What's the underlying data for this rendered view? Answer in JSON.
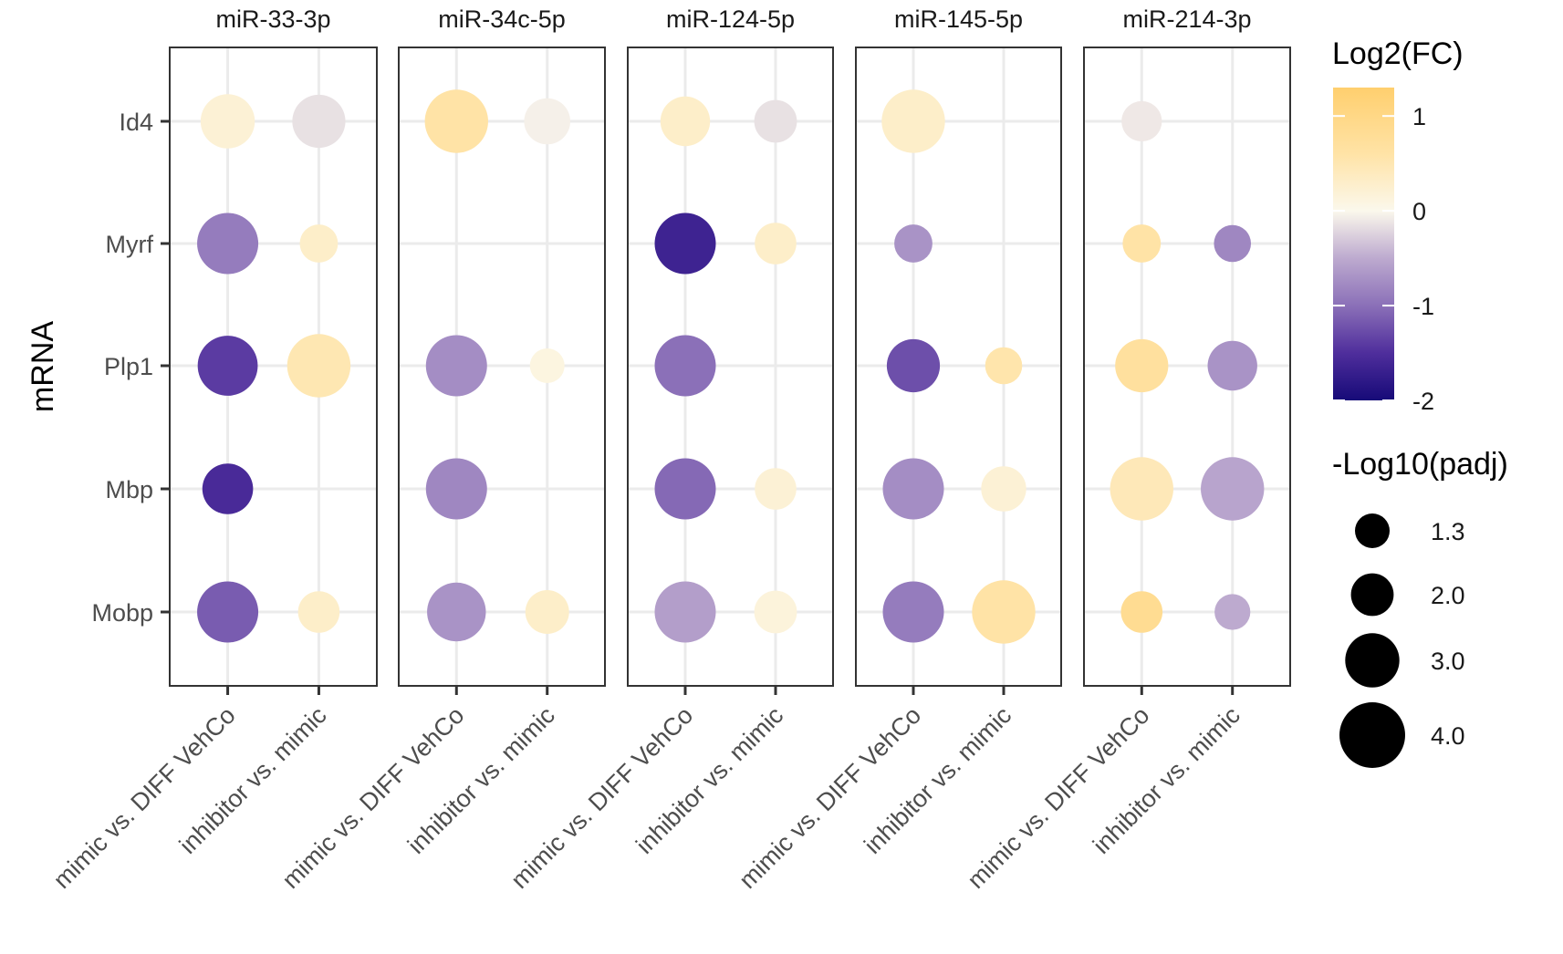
{
  "chart_data": {
    "type": "scatter",
    "subtype": "faceted-dot-plot",
    "ylabel": "mRNA",
    "facets": [
      "miR-33-3p",
      "miR-34c-5p",
      "miR-124-5p",
      "miR-145-5p",
      "miR-214-3p"
    ],
    "x_categories": [
      "mimic vs. DIFF VehCo",
      "inhibitor vs. mimic"
    ],
    "y_categories": [
      "Id4",
      "Myrf",
      "Plp1",
      "Mbp",
      "Mobp"
    ],
    "points": [
      {
        "facet": "miR-33-3p",
        "x": "mimic vs. DIFF VehCo",
        "y": "Id4",
        "log2fc": 0.2,
        "neglog10padj": 3.0
      },
      {
        "facet": "miR-33-3p",
        "x": "inhibitor vs. mimic",
        "y": "Id4",
        "log2fc": -0.15,
        "neglog10padj": 2.9
      },
      {
        "facet": "miR-33-3p",
        "x": "mimic vs. DIFF VehCo",
        "y": "Myrf",
        "log2fc": -0.9,
        "neglog10padj": 3.6
      },
      {
        "facet": "miR-33-3p",
        "x": "inhibitor vs. mimic",
        "y": "Myrf",
        "log2fc": 0.3,
        "neglog10padj": 1.6
      },
      {
        "facet": "miR-33-3p",
        "x": "mimic vs. DIFF VehCo",
        "y": "Plp1",
        "log2fc": -1.4,
        "neglog10padj": 3.5
      },
      {
        "facet": "miR-33-3p",
        "x": "inhibitor vs. mimic",
        "y": "Plp1",
        "log2fc": 0.5,
        "neglog10padj": 3.8
      },
      {
        "facet": "miR-33-3p",
        "x": "mimic vs. DIFF VehCo",
        "y": "Mbp",
        "log2fc": -1.55,
        "neglog10padj": 2.7
      },
      {
        "facet": "miR-33-3p",
        "x": "mimic vs. DIFF VehCo",
        "y": "Mobp",
        "log2fc": -1.15,
        "neglog10padj": 3.6
      },
      {
        "facet": "miR-33-3p",
        "x": "inhibitor vs. mimic",
        "y": "Mobp",
        "log2fc": 0.3,
        "neglog10padj": 1.9
      },
      {
        "facet": "miR-34c-5p",
        "x": "mimic vs. DIFF VehCo",
        "y": "Id4",
        "log2fc": 0.6,
        "neglog10padj": 3.8
      },
      {
        "facet": "miR-34c-5p",
        "x": "inhibitor vs. mimic",
        "y": "Id4",
        "log2fc": -0.05,
        "neglog10padj": 2.3
      },
      {
        "facet": "miR-34c-5p",
        "x": "mimic vs. DIFF VehCo",
        "y": "Plp1",
        "log2fc": -0.75,
        "neglog10padj": 3.6
      },
      {
        "facet": "miR-34c-5p",
        "x": "inhibitor vs. mimic",
        "y": "Plp1",
        "log2fc": 0.1,
        "neglog10padj": 1.3
      },
      {
        "facet": "miR-34c-5p",
        "x": "mimic vs. DIFF VehCo",
        "y": "Mbp",
        "log2fc": -0.8,
        "neglog10padj": 3.6
      },
      {
        "facet": "miR-34c-5p",
        "x": "mimic vs. DIFF VehCo",
        "y": "Mobp",
        "log2fc": -0.7,
        "neglog10padj": 3.4
      },
      {
        "facet": "miR-34c-5p",
        "x": "inhibitor vs. mimic",
        "y": "Mobp",
        "log2fc": 0.3,
        "neglog10padj": 2.1
      },
      {
        "facet": "miR-124-5p",
        "x": "mimic vs. DIFF VehCo",
        "y": "Id4",
        "log2fc": 0.3,
        "neglog10padj": 2.6
      },
      {
        "facet": "miR-124-5p",
        "x": "inhibitor vs. mimic",
        "y": "Id4",
        "log2fc": -0.15,
        "neglog10padj": 2.0
      },
      {
        "facet": "miR-124-5p",
        "x": "mimic vs. DIFF VehCo",
        "y": "Myrf",
        "log2fc": -1.65,
        "neglog10padj": 3.6
      },
      {
        "facet": "miR-124-5p",
        "x": "inhibitor vs. mimic",
        "y": "Myrf",
        "log2fc": 0.3,
        "neglog10padj": 1.9
      },
      {
        "facet": "miR-124-5p",
        "x": "mimic vs. DIFF VehCo",
        "y": "Plp1",
        "log2fc": -1.0,
        "neglog10padj": 3.6
      },
      {
        "facet": "miR-124-5p",
        "x": "mimic vs. DIFF VehCo",
        "y": "Mbp",
        "log2fc": -1.05,
        "neglog10padj": 3.6
      },
      {
        "facet": "miR-124-5p",
        "x": "inhibitor vs. mimic",
        "y": "Mbp",
        "log2fc": 0.2,
        "neglog10padj": 1.9
      },
      {
        "facet": "miR-124-5p",
        "x": "mimic vs. DIFF VehCo",
        "y": "Mobp",
        "log2fc": -0.6,
        "neglog10padj": 3.6
      },
      {
        "facet": "miR-124-5p",
        "x": "inhibitor vs. mimic",
        "y": "Mobp",
        "log2fc": 0.15,
        "neglog10padj": 2.0
      },
      {
        "facet": "miR-145-5p",
        "x": "mimic vs. DIFF VehCo",
        "y": "Id4",
        "log2fc": 0.3,
        "neglog10padj": 3.8
      },
      {
        "facet": "miR-145-5p",
        "x": "mimic vs. DIFF VehCo",
        "y": "Myrf",
        "log2fc": -0.7,
        "neglog10padj": 1.6
      },
      {
        "facet": "miR-145-5p",
        "x": "mimic vs. DIFF VehCo",
        "y": "Plp1",
        "log2fc": -1.25,
        "neglog10padj": 2.9
      },
      {
        "facet": "miR-145-5p",
        "x": "inhibitor vs. mimic",
        "y": "Plp1",
        "log2fc": 0.55,
        "neglog10padj": 1.5
      },
      {
        "facet": "miR-145-5p",
        "x": "mimic vs. DIFF VehCo",
        "y": "Mbp",
        "log2fc": -0.75,
        "neglog10padj": 3.6
      },
      {
        "facet": "miR-145-5p",
        "x": "inhibitor vs. mimic",
        "y": "Mbp",
        "log2fc": 0.2,
        "neglog10padj": 2.2
      },
      {
        "facet": "miR-145-5p",
        "x": "mimic vs. DIFF VehCo",
        "y": "Mobp",
        "log2fc": -0.9,
        "neglog10padj": 3.6
      },
      {
        "facet": "miR-145-5p",
        "x": "inhibitor vs. mimic",
        "y": "Mobp",
        "log2fc": 0.6,
        "neglog10padj": 3.8
      },
      {
        "facet": "miR-214-3p",
        "x": "mimic vs. DIFF VehCo",
        "y": "Id4",
        "log2fc": -0.1,
        "neglog10padj": 1.8
      },
      {
        "facet": "miR-214-3p",
        "x": "mimic vs. DIFF VehCo",
        "y": "Myrf",
        "log2fc": 0.6,
        "neglog10padj": 1.6
      },
      {
        "facet": "miR-214-3p",
        "x": "inhibitor vs. mimic",
        "y": "Myrf",
        "log2fc": -0.8,
        "neglog10padj": 1.5
      },
      {
        "facet": "miR-214-3p",
        "x": "mimic vs. DIFF VehCo",
        "y": "Plp1",
        "log2fc": 0.7,
        "neglog10padj": 2.9
      },
      {
        "facet": "miR-214-3p",
        "x": "inhibitor vs. mimic",
        "y": "Plp1",
        "log2fc": -0.7,
        "neglog10padj": 2.6
      },
      {
        "facet": "miR-214-3p",
        "x": "mimic vs. DIFF VehCo",
        "y": "Mbp",
        "log2fc": 0.45,
        "neglog10padj": 3.8
      },
      {
        "facet": "miR-214-3p",
        "x": "inhibitor vs. mimic",
        "y": "Mbp",
        "log2fc": -0.55,
        "neglog10padj": 3.8
      },
      {
        "facet": "miR-214-3p",
        "x": "mimic vs. DIFF VehCo",
        "y": "Mobp",
        "log2fc": 0.85,
        "neglog10padj": 1.9
      },
      {
        "facet": "miR-214-3p",
        "x": "inhibitor vs. mimic",
        "y": "Mobp",
        "log2fc": -0.5,
        "neglog10padj": 1.4
      }
    ],
    "color_legend": {
      "title": "Log2(FC)",
      "range": [
        -2,
        1.3
      ],
      "breaks": [
        1,
        0,
        -1,
        -2
      ],
      "break_labels": [
        "1",
        "0",
        "-1",
        "-2"
      ],
      "low_color": "#160A78",
      "mid_color": "#FFFBE8",
      "high_color": "#FFCF6E",
      "stops": [
        {
          "value": -2.0,
          "color": "#160A78"
        },
        {
          "value": -1.5,
          "color": "#4F2E9C"
        },
        {
          "value": -1.0,
          "color": "#8B70B8"
        },
        {
          "value": -0.5,
          "color": "#BDAACF"
        },
        {
          "value": 0.0,
          "color": "#FBF8EC"
        },
        {
          "value": 0.6,
          "color": "#FFE3A6"
        },
        {
          "value": 1.3,
          "color": "#FFCF6E"
        }
      ]
    },
    "size_legend": {
      "title": "-Log10(padj)",
      "breaks": [
        1.3,
        2.0,
        3.0,
        4.0
      ],
      "break_labels": [
        "1.3",
        "2.0",
        "3.0",
        "4.0"
      ],
      "domain": [
        1.3,
        4.0
      ]
    }
  }
}
